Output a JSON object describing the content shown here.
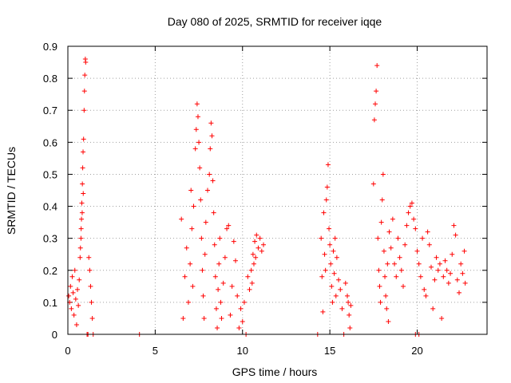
{
  "chart_data": {
    "type": "scatter",
    "title": "Day 080 of 2025, SRMTID for receiver iqqe",
    "xlabel": "GPS time / hours",
    "ylabel": "SRMTID / TECUs",
    "xlim": [
      0,
      24
    ],
    "ylim": [
      0,
      0.9
    ],
    "xticks": [
      0,
      5,
      10,
      15,
      20
    ],
    "yticks": [
      0,
      0.1,
      0.2,
      0.3,
      0.4,
      0.5,
      0.6,
      0.7,
      0.8,
      0.9
    ],
    "grid": true,
    "marker": "+",
    "color": "#ff0000",
    "series": [
      {
        "name": "SRMTID",
        "points": [
          [
            0.05,
            0.12
          ],
          [
            0.1,
            0.1
          ],
          [
            0.15,
            0.15
          ],
          [
            0.2,
            0.08
          ],
          [
            0.25,
            0.18
          ],
          [
            0.3,
            0.13
          ],
          [
            0.35,
            0.06
          ],
          [
            0.4,
            0.2
          ],
          [
            0.45,
            0.11
          ],
          [
            0.5,
            0.03
          ],
          [
            0.55,
            0.14
          ],
          [
            0.6,
            0.09
          ],
          [
            0.65,
            0.17
          ],
          [
            0.7,
            0.24
          ],
          [
            0.75,
            0.3
          ],
          [
            0.78,
            0.36
          ],
          [
            0.8,
            0.41
          ],
          [
            0.83,
            0.47
          ],
          [
            0.85,
            0.52
          ],
          [
            0.87,
            0.57
          ],
          [
            0.9,
            0.61
          ],
          [
            0.93,
            0.7
          ],
          [
            0.95,
            0.76
          ],
          [
            0.97,
            0.81
          ],
          [
            1.0,
            0.86
          ],
          [
            1.02,
            0.85
          ],
          [
            0.88,
            0.44
          ],
          [
            0.82,
            0.38
          ],
          [
            0.76,
            0.33
          ],
          [
            0.72,
            0.27
          ],
          [
            1.2,
            0.24
          ],
          [
            1.25,
            0.2
          ],
          [
            1.3,
            0.15
          ],
          [
            1.35,
            0.1
          ],
          [
            1.4,
            0.05
          ],
          [
            1.45,
            0.0
          ],
          [
            1.1,
            0.0
          ],
          [
            1.15,
            0.0
          ],
          [
            4.1,
            0.0
          ],
          [
            6.5,
            0.36
          ],
          [
            6.6,
            0.05
          ],
          [
            6.7,
            0.18
          ],
          [
            6.8,
            0.27
          ],
          [
            6.9,
            0.1
          ],
          [
            7.0,
            0.22
          ],
          [
            7.05,
            0.45
          ],
          [
            7.1,
            0.33
          ],
          [
            7.15,
            0.15
          ],
          [
            7.2,
            0.4
          ],
          [
            7.3,
            0.58
          ],
          [
            7.35,
            0.64
          ],
          [
            7.4,
            0.72
          ],
          [
            7.45,
            0.68
          ],
          [
            7.5,
            0.6
          ],
          [
            7.55,
            0.52
          ],
          [
            7.6,
            0.42
          ],
          [
            7.65,
            0.3
          ],
          [
            7.7,
            0.2
          ],
          [
            7.75,
            0.12
          ],
          [
            7.8,
            0.05
          ],
          [
            7.85,
            0.25
          ],
          [
            7.9,
            0.35
          ],
          [
            8.0,
            0.45
          ],
          [
            8.1,
            0.5
          ],
          [
            8.15,
            0.58
          ],
          [
            8.2,
            0.66
          ],
          [
            8.25,
            0.62
          ],
          [
            8.3,
            0.48
          ],
          [
            8.35,
            0.38
          ],
          [
            8.4,
            0.28
          ],
          [
            8.45,
            0.18
          ],
          [
            8.5,
            0.08
          ],
          [
            8.55,
            0.02
          ],
          [
            8.6,
            0.14
          ],
          [
            8.65,
            0.22
          ],
          [
            8.7,
            0.3
          ],
          [
            8.75,
            0.1
          ],
          [
            8.8,
            0.05
          ],
          [
            8.9,
            0.16
          ],
          [
            9.0,
            0.24
          ],
          [
            9.1,
            0.33
          ],
          [
            9.2,
            0.34
          ],
          [
            9.3,
            0.06
          ],
          [
            9.4,
            0.15
          ],
          [
            9.5,
            0.29
          ],
          [
            9.6,
            0.23
          ],
          [
            9.7,
            0.12
          ],
          [
            9.8,
            0.02
          ],
          [
            9.9,
            0.08
          ],
          [
            10.0,
            0.04
          ],
          [
            10.1,
            0.1
          ],
          [
            10.2,
            0.0
          ],
          [
            10.3,
            0.18
          ],
          [
            10.4,
            0.14
          ],
          [
            10.5,
            0.2
          ],
          [
            10.6,
            0.25
          ],
          [
            10.7,
            0.29
          ],
          [
            10.8,
            0.31
          ],
          [
            10.9,
            0.27
          ],
          [
            11.0,
            0.3
          ],
          [
            11.1,
            0.26
          ],
          [
            11.2,
            0.28
          ],
          [
            10.55,
            0.16
          ],
          [
            10.65,
            0.22
          ],
          [
            10.75,
            0.24
          ],
          [
            14.3,
            0.0
          ],
          [
            14.5,
            0.3
          ],
          [
            14.55,
            0.18
          ],
          [
            14.6,
            0.07
          ],
          [
            14.65,
            0.38
          ],
          [
            14.7,
            0.25
          ],
          [
            14.75,
            0.2
          ],
          [
            14.8,
            0.42
          ],
          [
            14.85,
            0.46
          ],
          [
            14.9,
            0.53
          ],
          [
            14.95,
            0.33
          ],
          [
            15.0,
            0.28
          ],
          [
            15.05,
            0.22
          ],
          [
            15.1,
            0.15
          ],
          [
            15.15,
            0.1
          ],
          [
            15.2,
            0.26
          ],
          [
            15.25,
            0.19
          ],
          [
            15.3,
            0.3
          ],
          [
            15.35,
            0.12
          ],
          [
            15.4,
            0.24
          ],
          [
            15.5,
            0.17
          ],
          [
            15.6,
            0.14
          ],
          [
            15.7,
            0.08
          ],
          [
            15.8,
            0.0
          ],
          [
            15.9,
            0.16
          ],
          [
            16.0,
            0.12
          ],
          [
            16.05,
            0.1
          ],
          [
            16.1,
            0.06
          ],
          [
            16.15,
            0.02
          ],
          [
            16.2,
            0.09
          ],
          [
            17.5,
            0.47
          ],
          [
            17.55,
            0.67
          ],
          [
            17.6,
            0.72
          ],
          [
            17.65,
            0.76
          ],
          [
            17.7,
            0.84
          ],
          [
            17.75,
            0.3
          ],
          [
            17.8,
            0.2
          ],
          [
            17.85,
            0.15
          ],
          [
            17.9,
            0.1
          ],
          [
            17.95,
            0.35
          ],
          [
            18.0,
            0.42
          ],
          [
            18.05,
            0.5
          ],
          [
            18.1,
            0.26
          ],
          [
            18.15,
            0.18
          ],
          [
            18.2,
            0.12
          ],
          [
            18.25,
            0.08
          ],
          [
            18.3,
            0.22
          ],
          [
            18.35,
            0.04
          ],
          [
            18.4,
            0.32
          ],
          [
            18.5,
            0.27
          ],
          [
            18.6,
            0.36
          ],
          [
            18.7,
            0.22
          ],
          [
            18.8,
            0.18
          ],
          [
            18.9,
            0.3
          ],
          [
            19.0,
            0.24
          ],
          [
            19.1,
            0.2
          ],
          [
            19.2,
            0.15
          ],
          [
            19.3,
            0.28
          ],
          [
            19.4,
            0.34
          ],
          [
            19.5,
            0.38
          ],
          [
            19.6,
            0.4
          ],
          [
            19.7,
            0.41
          ],
          [
            19.8,
            0.36
          ],
          [
            19.9,
            0.33
          ],
          [
            20.0,
            0.26
          ],
          [
            20.1,
            0.22
          ],
          [
            20.2,
            0.18
          ],
          [
            20.3,
            0.3
          ],
          [
            20.4,
            0.14
          ],
          [
            20.5,
            0.12
          ],
          [
            20.6,
            0.32
          ],
          [
            20.7,
            0.28
          ],
          [
            20.8,
            0.21
          ],
          [
            20.9,
            0.08
          ],
          [
            21.0,
            0.17
          ],
          [
            21.1,
            0.24
          ],
          [
            21.2,
            0.2
          ],
          [
            21.3,
            0.22
          ],
          [
            21.4,
            0.05
          ],
          [
            21.5,
            0.18
          ],
          [
            21.6,
            0.23
          ],
          [
            21.7,
            0.2
          ],
          [
            21.8,
            0.16
          ],
          [
            21.9,
            0.19
          ],
          [
            22.0,
            0.25
          ],
          [
            22.1,
            0.34
          ],
          [
            22.2,
            0.31
          ],
          [
            22.3,
            0.17
          ],
          [
            22.4,
            0.13
          ],
          [
            22.5,
            0.22
          ],
          [
            22.6,
            0.19
          ],
          [
            22.7,
            0.26
          ],
          [
            22.75,
            0.16
          ],
          [
            19.9,
            0.0
          ],
          [
            20.1,
            0.0
          ]
        ]
      }
    ]
  }
}
